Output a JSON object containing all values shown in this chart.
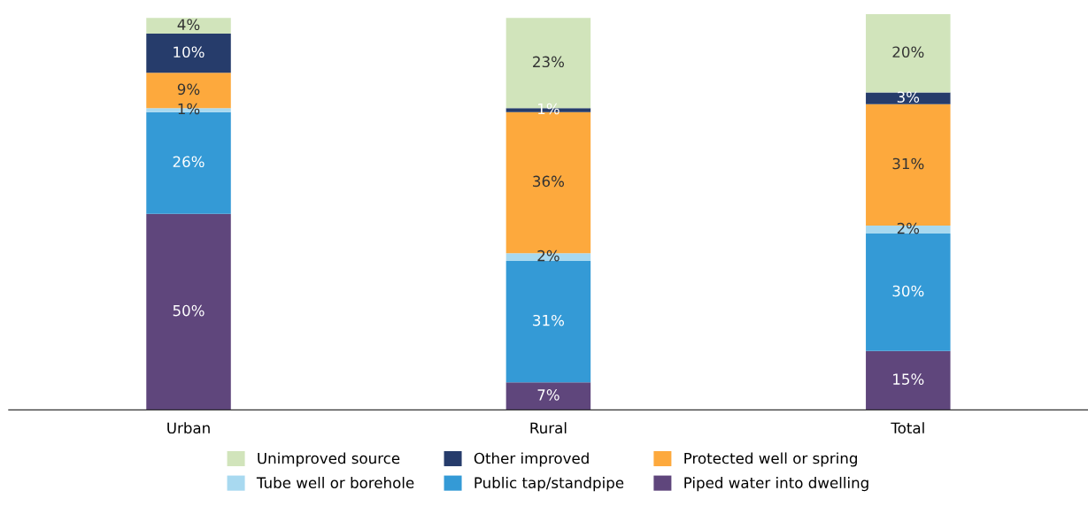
{
  "chart_data": {
    "type": "bar",
    "stacked": true,
    "categories": [
      "Urban",
      "Rural",
      "Total"
    ],
    "tick_labels": "x",
    "grid": false,
    "legend": "bottom",
    "series": [
      {
        "name": "Piped water into dwelling",
        "color": "#5f467c",
        "values": [
          50,
          7,
          15
        ],
        "value_labels": [
          "50%",
          "7%",
          "15%"
        ]
      },
      {
        "name": "Public tap/standpipe",
        "color": "#349ad6",
        "values": [
          26,
          31,
          30
        ],
        "value_labels": [
          "26%",
          "31%",
          "30%"
        ]
      },
      {
        "name": "Tube well or borehole",
        "color": "#a8d9f0",
        "values": [
          1,
          2,
          2
        ],
        "value_labels": [
          "1%",
          "2%",
          "2%"
        ]
      },
      {
        "name": "Protected well or spring",
        "color": "#fda93d",
        "values": [
          9,
          36,
          31
        ],
        "value_labels": [
          "9%",
          "36%",
          "31%"
        ]
      },
      {
        "name": "Other improved",
        "color": "#263c6b",
        "values": [
          10,
          1,
          3
        ],
        "value_labels": [
          "10%",
          "1%",
          "3%"
        ]
      },
      {
        "name": "Unimproved source",
        "color": "#d1e4bb",
        "values": [
          4,
          23,
          20
        ],
        "value_labels": [
          "4%",
          "23%",
          "20%"
        ]
      }
    ]
  }
}
